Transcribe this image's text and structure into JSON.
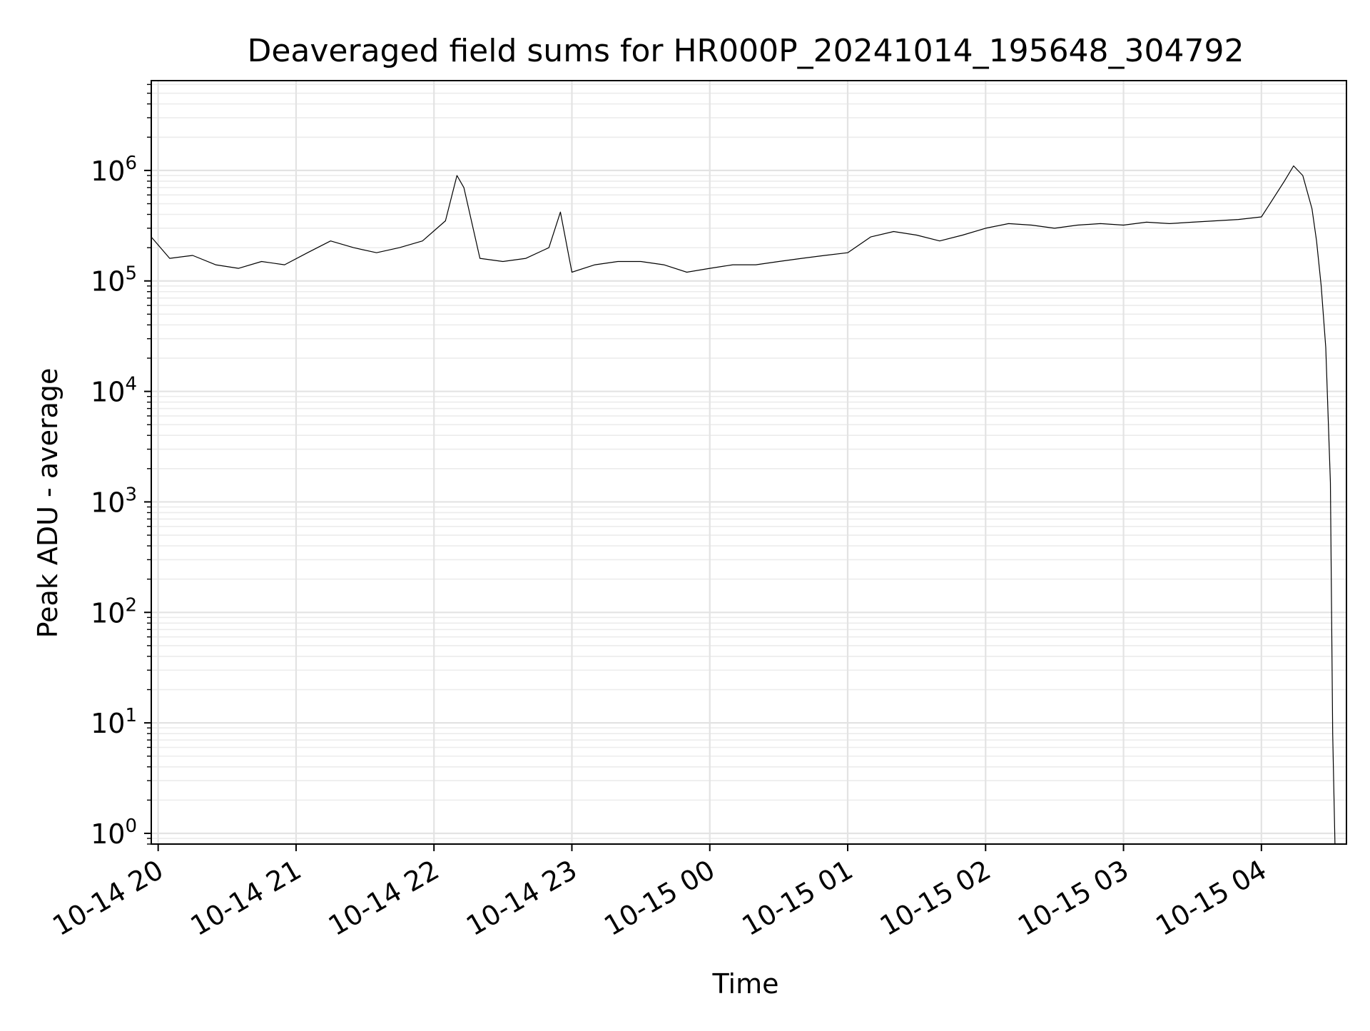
{
  "chart_data": {
    "type": "line",
    "title": "Deaveraged field sums for HR000P_20241014_195648_304792",
    "xlabel": "Time",
    "ylabel": "Peak ADU - average",
    "yscale": "log",
    "ylim": [
      0.8,
      6500000
    ],
    "xlim": [
      "2024-10-14 19:57",
      "2024-10-15 04:37"
    ],
    "grid": true,
    "line_color": "#000000",
    "x_ticks": [
      {
        "value": "2024-10-14 20:00",
        "label": "10-14 20"
      },
      {
        "value": "2024-10-14 21:00",
        "label": "10-14 21"
      },
      {
        "value": "2024-10-14 22:00",
        "label": "10-14 22"
      },
      {
        "value": "2024-10-14 23:00",
        "label": "10-14 23"
      },
      {
        "value": "2024-10-15 00:00",
        "label": "10-15 00"
      },
      {
        "value": "2024-10-15 01:00",
        "label": "10-15 01"
      },
      {
        "value": "2024-10-15 02:00",
        "label": "10-15 02"
      },
      {
        "value": "2024-10-15 03:00",
        "label": "10-15 03"
      },
      {
        "value": "2024-10-15 04:00",
        "label": "10-15 04"
      }
    ],
    "y_ticks": [
      {
        "value": 1,
        "base": "10",
        "exp": "0"
      },
      {
        "value": 10,
        "base": "10",
        "exp": "1"
      },
      {
        "value": 100,
        "base": "10",
        "exp": "2"
      },
      {
        "value": 1000,
        "base": "10",
        "exp": "3"
      },
      {
        "value": 10000,
        "base": "10",
        "exp": "4"
      },
      {
        "value": 100000,
        "base": "10",
        "exp": "5"
      },
      {
        "value": 1000000,
        "base": "10",
        "exp": "6"
      }
    ],
    "series": [
      {
        "x": [
          "2024-10-14 19:57",
          "2024-10-14 20:05",
          "2024-10-14 20:15",
          "2024-10-14 20:25",
          "2024-10-14 20:35",
          "2024-10-14 20:45",
          "2024-10-14 20:55",
          "2024-10-14 21:05",
          "2024-10-14 21:15",
          "2024-10-14 21:25",
          "2024-10-14 21:35",
          "2024-10-14 21:45",
          "2024-10-14 21:55",
          "2024-10-14 22:05",
          "2024-10-14 22:10",
          "2024-10-14 22:13",
          "2024-10-14 22:20",
          "2024-10-14 22:30",
          "2024-10-14 22:40",
          "2024-10-14 22:50",
          "2024-10-14 22:55",
          "2024-10-14 23:00",
          "2024-10-14 23:10",
          "2024-10-14 23:20",
          "2024-10-14 23:30",
          "2024-10-14 23:40",
          "2024-10-14 23:50",
          "2024-10-15 00:00",
          "2024-10-15 00:10",
          "2024-10-15 00:20",
          "2024-10-15 00:30",
          "2024-10-15 00:40",
          "2024-10-15 00:50",
          "2024-10-15 01:00",
          "2024-10-15 01:10",
          "2024-10-15 01:20",
          "2024-10-15 01:30",
          "2024-10-15 01:40",
          "2024-10-15 01:50",
          "2024-10-15 02:00",
          "2024-10-15 02:10",
          "2024-10-15 02:20",
          "2024-10-15 02:30",
          "2024-10-15 02:40",
          "2024-10-15 02:50",
          "2024-10-15 03:00",
          "2024-10-15 03:10",
          "2024-10-15 03:20",
          "2024-10-15 03:30",
          "2024-10-15 03:40",
          "2024-10-15 03:50",
          "2024-10-15 04:00",
          "2024-10-15 04:05",
          "2024-10-15 04:10",
          "2024-10-15 04:14",
          "2024-10-15 04:18",
          "2024-10-15 04:22",
          "2024-10-15 04:24",
          "2024-10-15 04:26",
          "2024-10-15 04:28",
          "2024-10-15 04:30",
          "2024-10-15 04:31",
          "2024-10-15 04:32"
        ],
        "values": [
          250000,
          160000,
          170000,
          140000,
          130000,
          150000,
          140000,
          180000,
          230000,
          200000,
          180000,
          200000,
          230000,
          350000,
          900000,
          700000,
          160000,
          150000,
          160000,
          200000,
          420000,
          120000,
          140000,
          150000,
          150000,
          140000,
          120000,
          130000,
          140000,
          140000,
          150000,
          160000,
          170000,
          180000,
          250000,
          280000,
          260000,
          230000,
          260000,
          300000,
          330000,
          320000,
          300000,
          320000,
          330000,
          320000,
          340000,
          330000,
          340000,
          350000,
          360000,
          380000,
          550000,
          800000,
          1100000,
          900000,
          450000,
          230000,
          90000,
          25000,
          1500,
          8,
          0.8
        ]
      }
    ]
  }
}
